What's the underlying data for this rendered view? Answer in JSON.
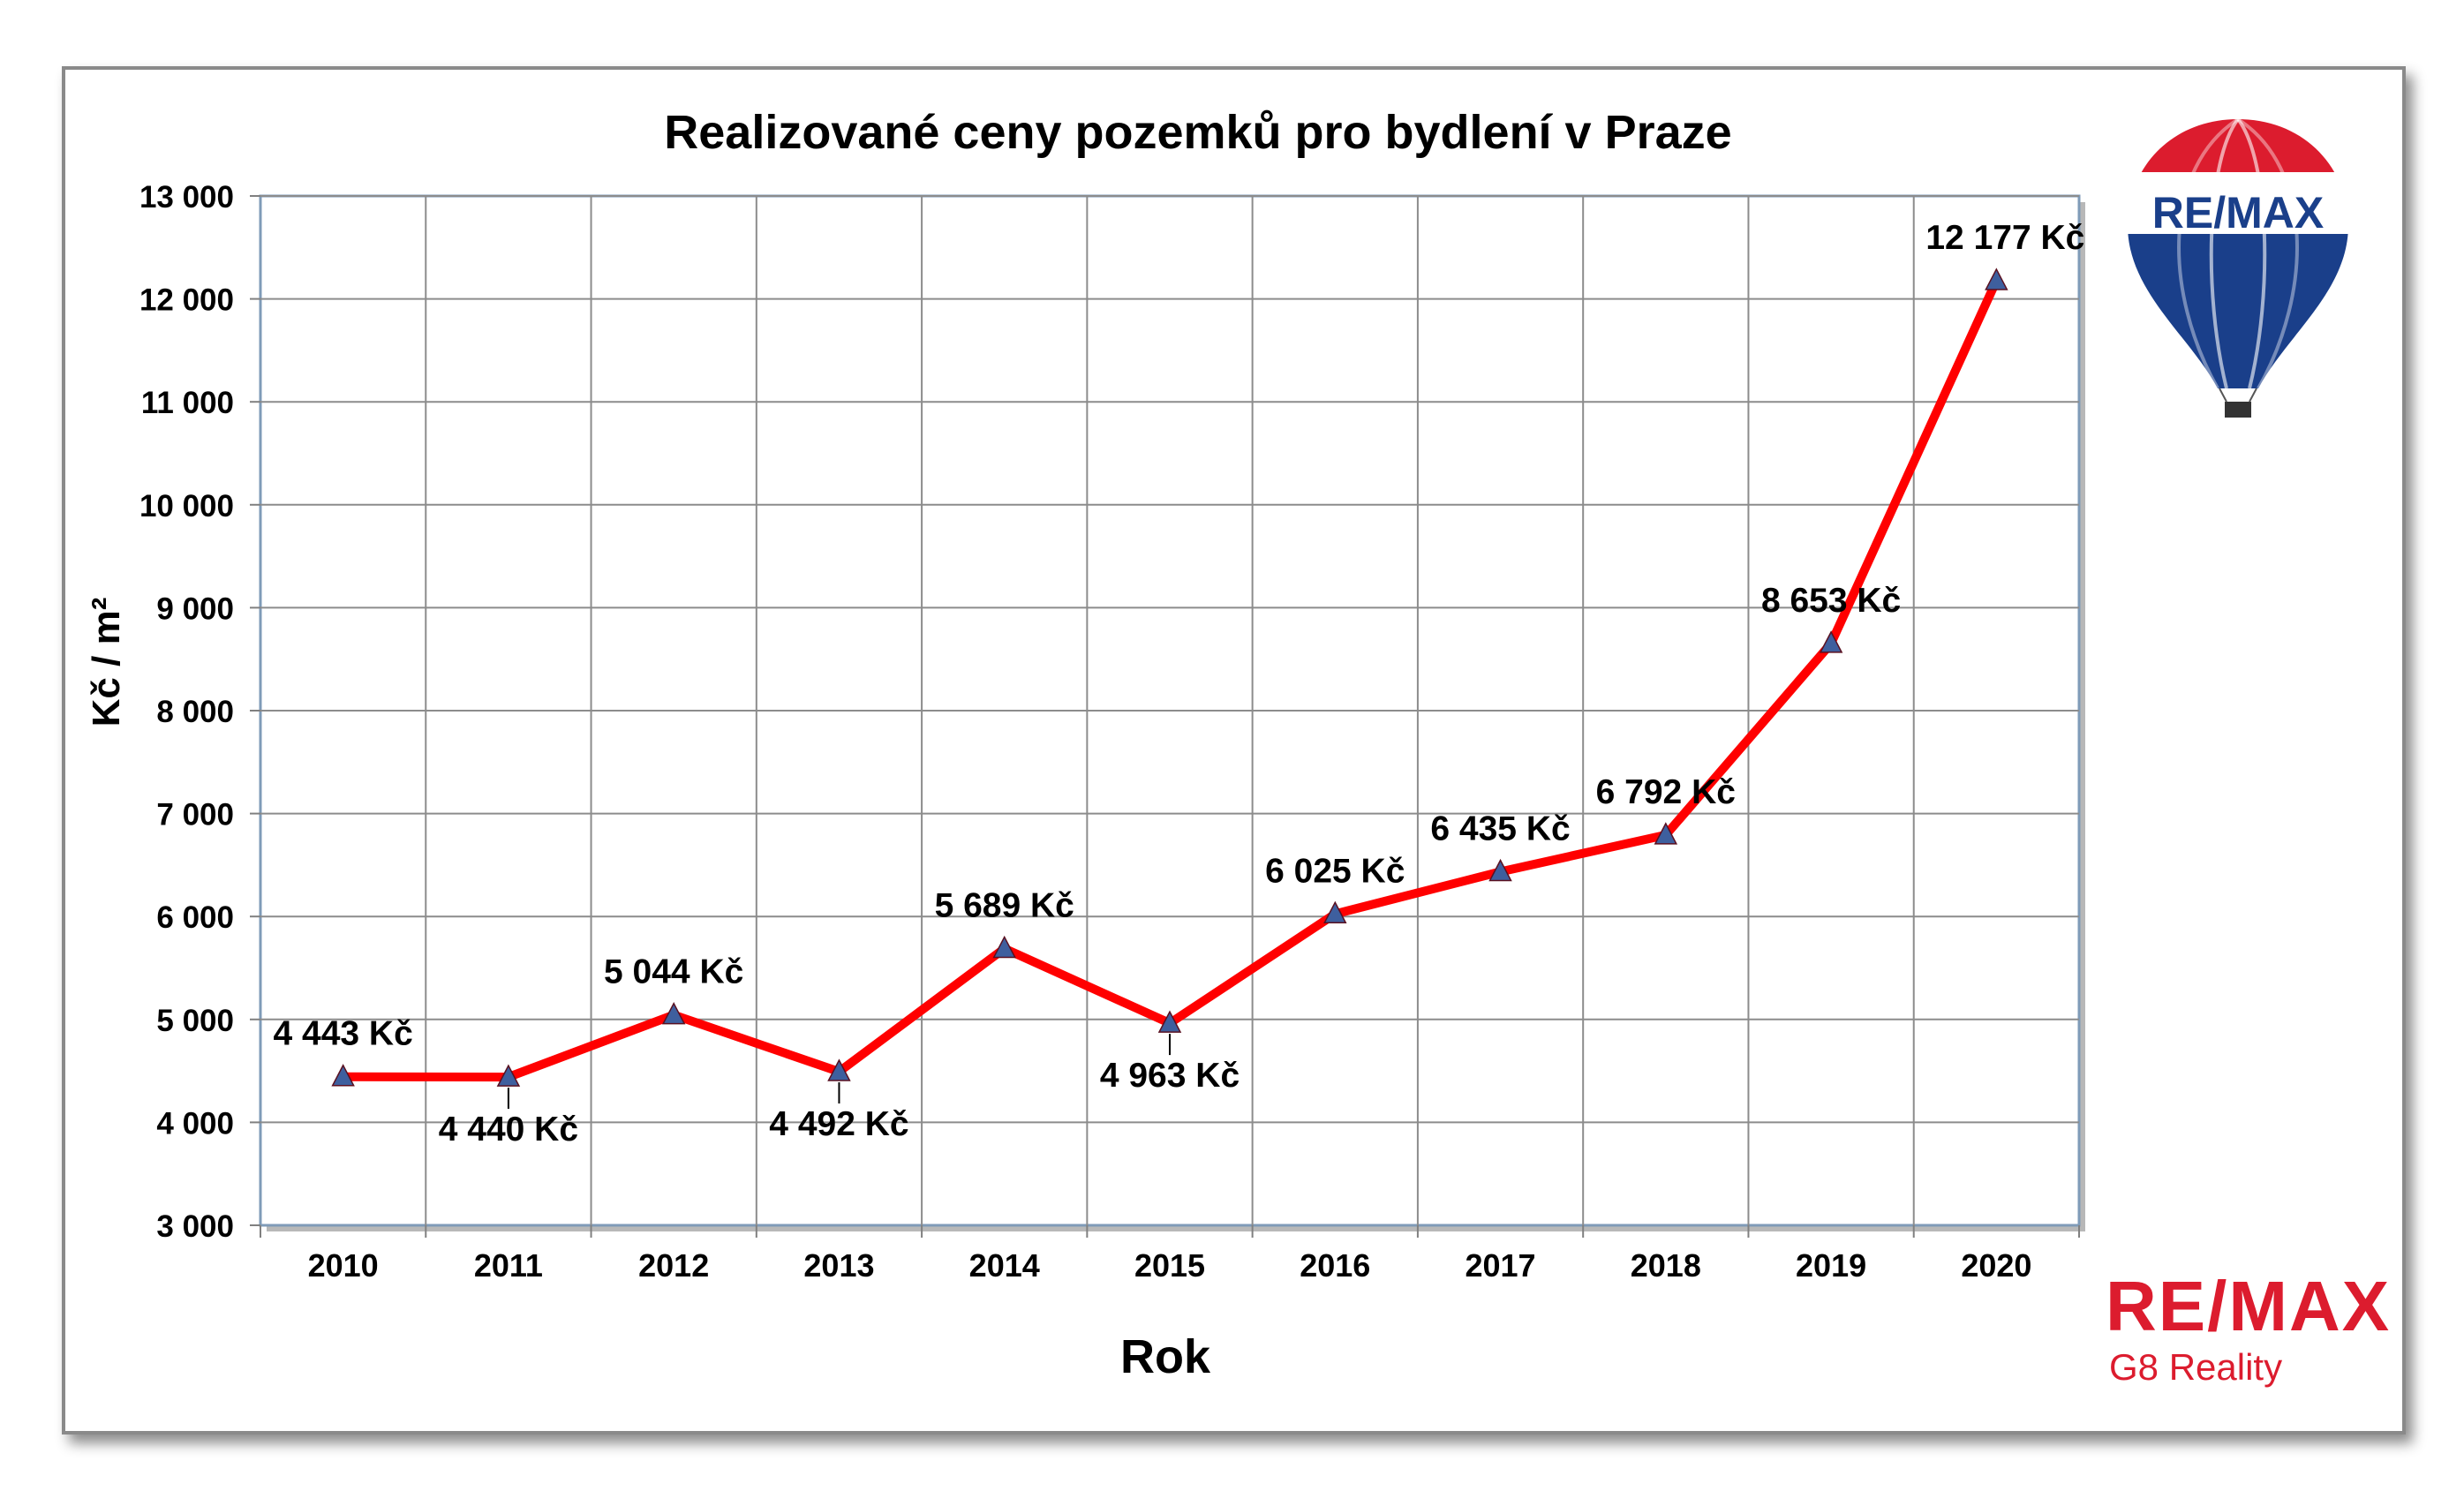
{
  "brand": {
    "balloon_text": "RE/MAX",
    "wordmark": "RE/MAX",
    "subtitle": "G8 Reality",
    "red": "#dc1c2e",
    "blue": "#1a3f8a"
  },
  "chart_data": {
    "type": "line",
    "title": "Realizované ceny pozemků pro bydlení v Praze",
    "xlabel": "Rok",
    "ylabel": "Kč / m²",
    "ylim": [
      3000,
      13000
    ],
    "yticks": [
      3000,
      4000,
      5000,
      6000,
      7000,
      8000,
      9000,
      10000,
      11000,
      12000,
      13000
    ],
    "ytick_labels": [
      "3 000",
      "4 000",
      "5 000",
      "6 000",
      "7 000",
      "8 000",
      "9 000",
      "10 000",
      "11 000",
      "12 000",
      "13 000"
    ],
    "categories": [
      "2010",
      "2011",
      "2012",
      "2013",
      "2014",
      "2015",
      "2016",
      "2017",
      "2018",
      "2019",
      "2020"
    ],
    "values": [
      4443,
      4440,
      5044,
      4492,
      5689,
      4963,
      6025,
      6435,
      6792,
      8653,
      12177
    ],
    "data_labels": [
      "4 443 Kč",
      "4 440 Kč",
      "5 044 Kč",
      "4 492 Kč",
      "5 689 Kč",
      "4 963 Kč",
      "6 025 Kč",
      "6 435 Kč",
      "6 792 Kč",
      "8 653 Kč",
      "12 177 Kč"
    ],
    "line_color": "#ff0000",
    "marker_color": "#3e5f9e",
    "grid": true,
    "legend": "none"
  }
}
